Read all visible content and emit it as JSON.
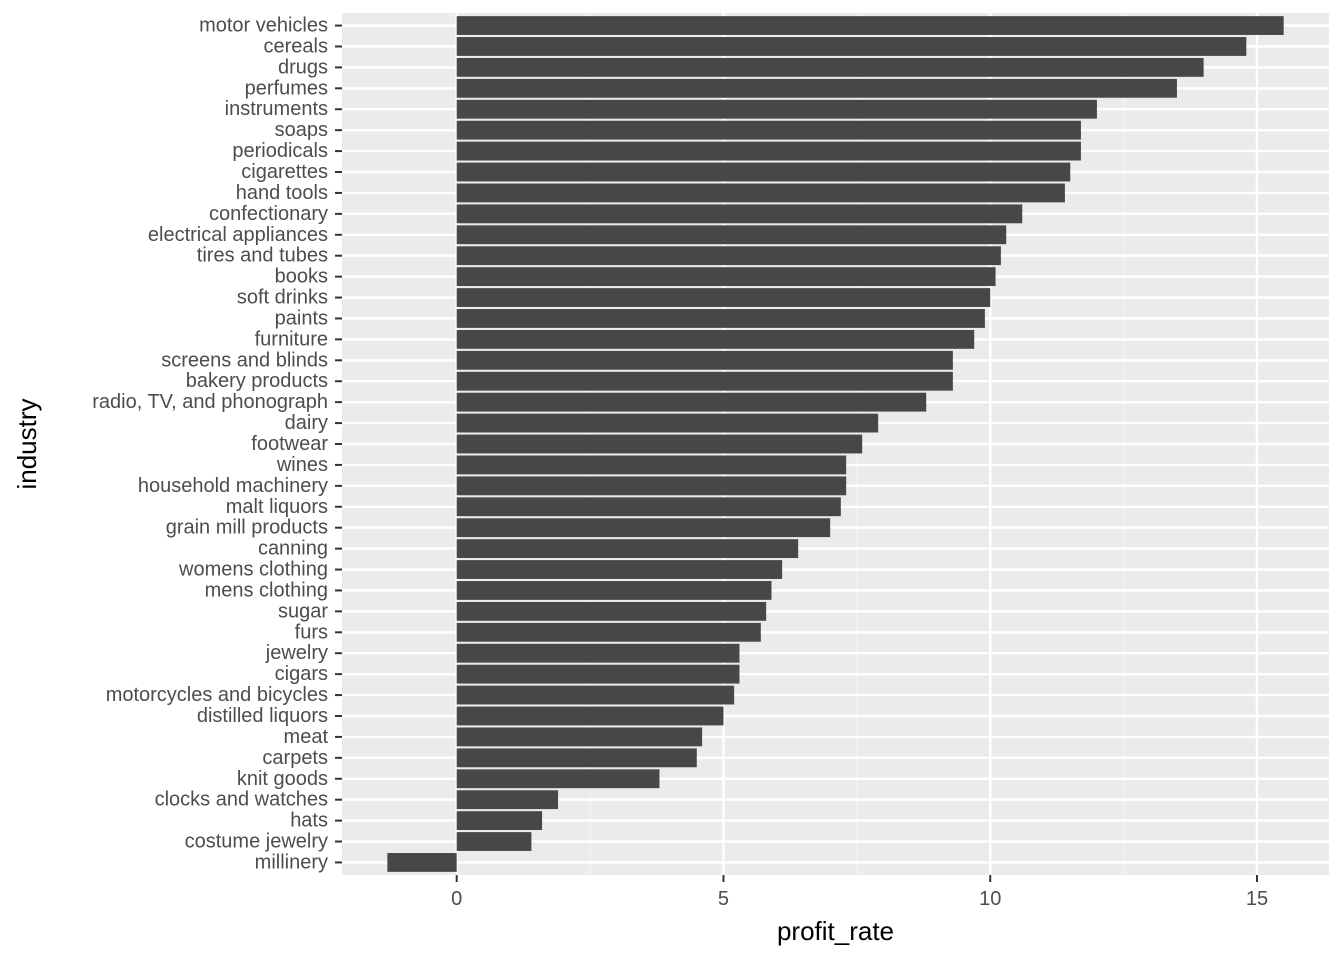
{
  "chart_data": {
    "type": "bar",
    "orientation": "horizontal",
    "xlabel": "profit_rate",
    "ylabel": "industry",
    "xlim": [
      -2.15,
      16.35
    ],
    "x_ticks": [
      0,
      5,
      10,
      15
    ],
    "x_tick_labels": [
      "0",
      "5",
      "10",
      "15"
    ],
    "grid": true,
    "categories": [
      "motor vehicles",
      "cereals",
      "drugs",
      "perfumes",
      "instruments",
      "soaps",
      "periodicals",
      "cigarettes",
      "hand tools",
      "confectionary",
      "electrical appliances",
      "tires and tubes",
      "books",
      "soft drinks",
      "paints",
      "furniture",
      "screens and blinds",
      "bakery products",
      "radio, TV, and phonograph",
      "dairy",
      "footwear",
      "wines",
      "household machinery",
      "malt liquors",
      "grain mill products",
      "canning",
      "womens clothing",
      "mens clothing",
      "sugar",
      "furs",
      "jewelry",
      "cigars",
      "motorcycles and bicycles",
      "distilled liquors",
      "meat",
      "carpets",
      "knit goods",
      "clocks and watches",
      "hats",
      "costume jewelry",
      "millinery"
    ],
    "values": [
      15.5,
      14.8,
      14.0,
      13.5,
      12.0,
      11.7,
      11.7,
      11.5,
      11.4,
      10.6,
      10.3,
      10.2,
      10.1,
      10.0,
      9.9,
      9.7,
      9.3,
      9.3,
      8.8,
      7.9,
      7.6,
      7.3,
      7.3,
      7.2,
      7.0,
      6.4,
      6.1,
      5.9,
      5.8,
      5.7,
      5.3,
      5.3,
      5.2,
      5.0,
      4.6,
      4.5,
      3.8,
      1.9,
      1.6,
      1.4,
      -1.3
    ],
    "colors": {
      "panel": "#ebebeb",
      "grid_major": "#ffffff",
      "grid_minor": "#f5f5f5",
      "bar": "#474747",
      "tick_text": "#4d4d4d",
      "tick_mark": "#333333",
      "axis_title": "#000000"
    }
  }
}
